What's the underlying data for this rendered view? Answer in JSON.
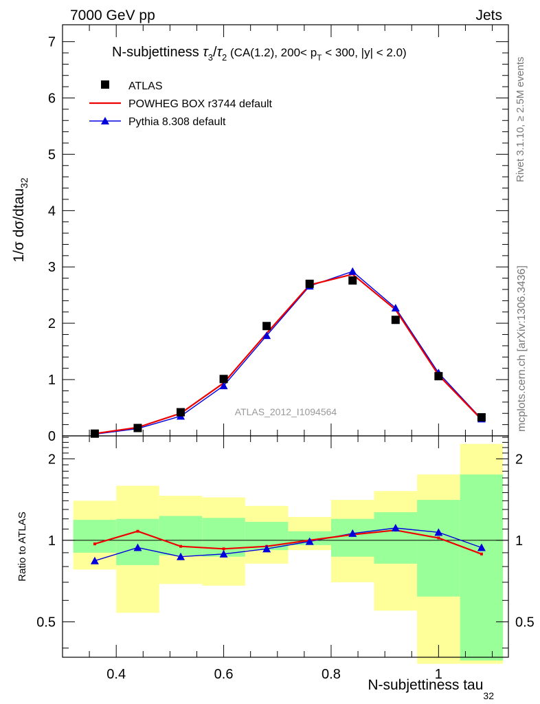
{
  "header": {
    "left": "7000 GeV pp",
    "right": "Jets"
  },
  "side_texts": {
    "rivet": "Rivet 3.1.10, ≥ 2.5M events",
    "mcplots": "mcplots.cern.ch [arXiv:1306.3436]"
  },
  "colors": {
    "atlas": "#000000",
    "powheg": "#ee0000",
    "pythia": "#0000dd",
    "band_inner": "#99ff99",
    "band_outer": "#ffff99"
  },
  "chart_data": [
    {
      "type": "line",
      "title": "N-subjettiness τ3/τ2 (CA(1.2), 200< pT < 300, |y| < 2.0)",
      "ylabel": "1/σ dσ/dtau32",
      "watermark": "ATLAS_2012_I1094564",
      "xlim": [
        0.3,
        1.13
      ],
      "ylim": [
        0,
        7.3
      ],
      "yticks": [
        0,
        1,
        2,
        3,
        4,
        5,
        6,
        7
      ],
      "legend": {
        "position": "top-left",
        "entries": [
          "ATLAS",
          "POWHEG BOX r3744 default",
          "Pythia 8.308 default"
        ]
      },
      "x": [
        0.36,
        0.44,
        0.52,
        0.6,
        0.68,
        0.76,
        0.84,
        0.92,
        1.0,
        1.08
      ],
      "series": [
        {
          "name": "ATLAS",
          "marker": "square",
          "values": [
            0.04,
            0.14,
            0.42,
            1.01,
            1.95,
            2.7,
            2.76,
            2.06,
            1.06,
            0.33
          ]
        },
        {
          "name": "POWHEG BOX r3744 default",
          "marker": "none",
          "values": [
            0.04,
            0.15,
            0.4,
            0.94,
            1.82,
            2.68,
            2.87,
            2.24,
            1.08,
            0.29
          ]
        },
        {
          "name": "Pythia 8.308 default",
          "marker": "triangle",
          "values": [
            0.03,
            0.13,
            0.35,
            0.89,
            1.78,
            2.66,
            2.92,
            2.27,
            1.12,
            0.3
          ]
        }
      ]
    },
    {
      "type": "line",
      "ylabel": "Ratio to ATLAS",
      "xlabel": "N-subjettiness tau32",
      "xlim": [
        0.3,
        1.13
      ],
      "ylim": [
        0.37,
        2.43
      ],
      "log_y": true,
      "yticks": [
        0.5,
        1,
        2
      ],
      "xticks": [
        0.4,
        0.6,
        0.8,
        1
      ],
      "bins": [
        [
          0.32,
          0.4
        ],
        [
          0.4,
          0.48
        ],
        [
          0.48,
          0.56
        ],
        [
          0.56,
          0.64
        ],
        [
          0.64,
          0.72
        ],
        [
          0.72,
          0.8
        ],
        [
          0.8,
          0.88
        ],
        [
          0.88,
          0.96
        ],
        [
          0.96,
          1.04
        ],
        [
          1.04,
          1.12
        ]
      ],
      "band_inner": [
        [
          0.9,
          1.19
        ],
        [
          0.81,
          1.2
        ],
        [
          0.88,
          1.23
        ],
        [
          0.87,
          1.21
        ],
        [
          0.92,
          1.17
        ],
        [
          0.96,
          1.08
        ],
        [
          0.87,
          1.2
        ],
        [
          0.82,
          1.27
        ],
        [
          0.62,
          1.41
        ],
        [
          0.36,
          1.75
        ]
      ],
      "band_outer": [
        [
          0.78,
          1.4
        ],
        [
          0.54,
          1.59
        ],
        [
          0.69,
          1.46
        ],
        [
          0.68,
          1.44
        ],
        [
          0.82,
          1.34
        ],
        [
          0.92,
          1.22
        ],
        [
          0.7,
          1.41
        ],
        [
          0.55,
          1.52
        ],
        [
          0.35,
          1.75
        ],
        [
          0.35,
          2.27
        ]
      ],
      "x": [
        0.36,
        0.44,
        0.52,
        0.6,
        0.68,
        0.76,
        0.84,
        0.92,
        1.0,
        1.08
      ],
      "series": [
        {
          "name": "POWHEG BOX r3744 default",
          "values": [
            0.97,
            1.08,
            0.95,
            0.93,
            0.95,
            1.0,
            1.05,
            1.09,
            1.02,
            0.89
          ]
        },
        {
          "name": "Pythia 8.308 default",
          "values": [
            0.84,
            0.94,
            0.87,
            0.89,
            0.93,
            0.99,
            1.06,
            1.11,
            1.07,
            0.94
          ]
        }
      ]
    }
  ]
}
